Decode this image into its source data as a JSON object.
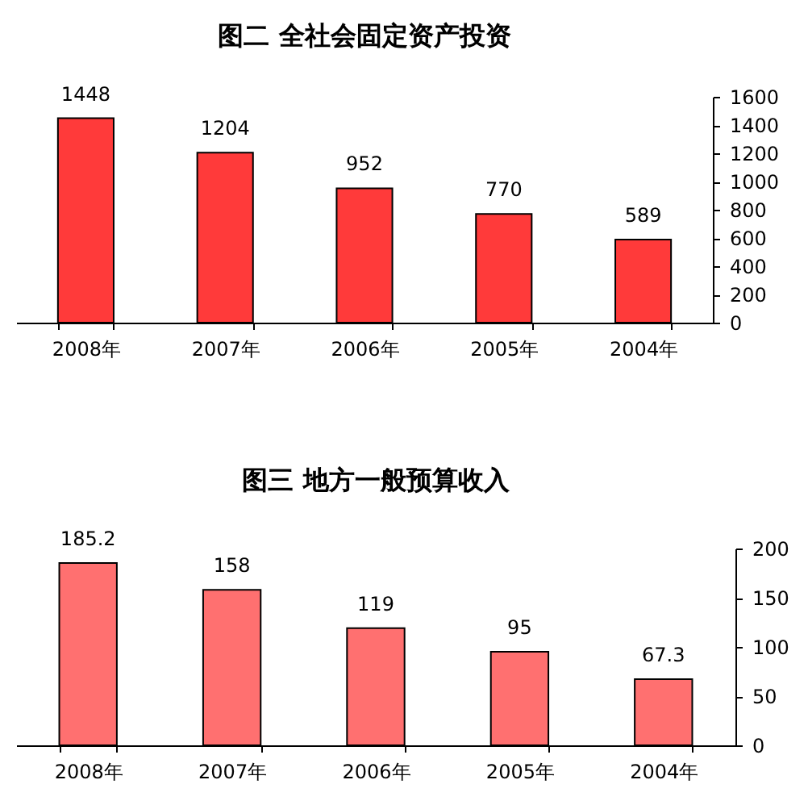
{
  "chart_data": [
    {
      "type": "bar",
      "title": "图二 全社会固定资产投资",
      "categories": [
        "2008年",
        "2007年",
        "2006年",
        "2005年",
        "2004年"
      ],
      "values": [
        1448,
        1204,
        952,
        770,
        589
      ],
      "color": "#ff3a3a",
      "ylim": [
        0,
        1600
      ],
      "yticks": [
        0,
        200,
        400,
        600,
        800,
        1000,
        1200,
        1400,
        1600
      ],
      "data_labels": true,
      "grid": false
    },
    {
      "type": "bar",
      "title": "图三 地方一般预算收入",
      "categories": [
        "2008年",
        "2007年",
        "2006年",
        "2005年",
        "2004年"
      ],
      "values": [
        185.2,
        158,
        119,
        95,
        67.3
      ],
      "color": "#ff7070",
      "ylim": [
        0,
        200
      ],
      "yticks": [
        0,
        50,
        100,
        150,
        200
      ],
      "data_labels": true,
      "grid": false
    }
  ]
}
